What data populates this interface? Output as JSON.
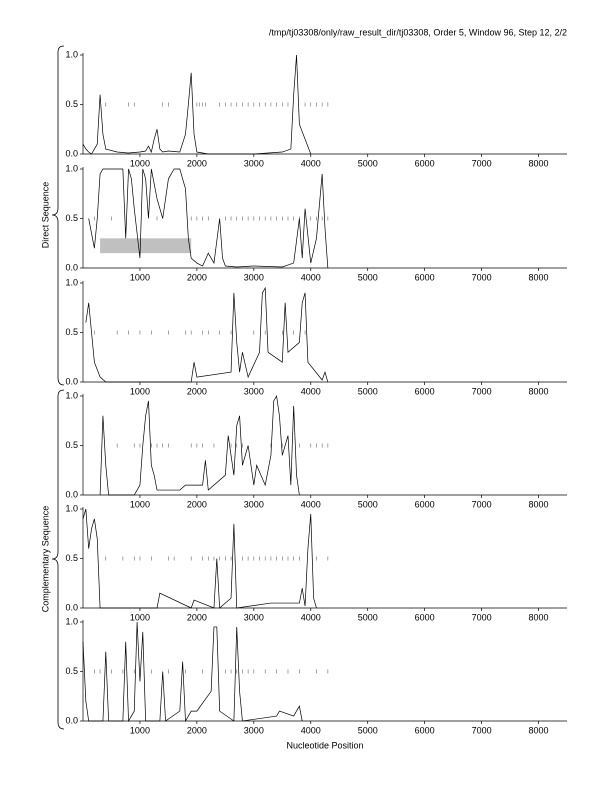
{
  "title": "/tmp/tj03308/only/raw_result_dir/tj03308, Order 5, Window 96, Step 12, 2/2",
  "x_label": "Nucleotide Position",
  "groups": [
    "Direct Sequence",
    "Complementary Sequence"
  ],
  "chart_data": [
    {
      "type": "line",
      "color": "#000000",
      "x": [
        0,
        50,
        100,
        150,
        250,
        300,
        350,
        400,
        600,
        800,
        1000,
        1100,
        1150,
        1200,
        1250,
        1300,
        1350,
        1400,
        1500,
        1700,
        1800,
        1850,
        1900,
        1950,
        2000,
        2200,
        2500,
        3000,
        3500,
        3650,
        3700,
        3750,
        3800,
        4000
      ],
      "values": [
        0.1,
        0.05,
        0.02,
        0,
        0.1,
        0.6,
        0.2,
        0.05,
        0.02,
        0.01,
        0.02,
        0.03,
        0.08,
        0.02,
        0.15,
        0.25,
        0.05,
        0.02,
        0.03,
        0.02,
        0.2,
        0.5,
        0.82,
        0.2,
        0.02,
        0,
        0,
        0,
        0.02,
        0.05,
        0.6,
        1.0,
        0.3,
        0
      ],
      "markers": [
        400,
        800,
        900,
        1400,
        1500,
        2000,
        2050,
        2100,
        2150,
        2400,
        2500,
        2600,
        2700,
        2800,
        2900,
        3000,
        3100,
        3200,
        3300,
        3400,
        3500,
        3600,
        3900,
        4000,
        4100,
        4200,
        4300
      ],
      "xlim": [
        0,
        8500
      ],
      "ylim": [
        0,
        1
      ],
      "xticks": [
        1000,
        2000,
        3000,
        4000,
        5000,
        6000,
        7000,
        8000
      ],
      "yticks": [
        {
          "value": 0,
          "label": "0.0"
        },
        {
          "value": 0.5,
          "label": "0.5"
        },
        {
          "value": 1,
          "label": "1.0"
        }
      ]
    },
    {
      "type": "line",
      "color": "#000000",
      "x": [
        100,
        200,
        250,
        300,
        350,
        500,
        700,
        750,
        800,
        850,
        900,
        1000,
        1050,
        1100,
        1150,
        1200,
        1300,
        1400,
        1500,
        1600,
        1700,
        1800,
        1850,
        1900,
        2000,
        2100,
        2200,
        2300,
        2400,
        2450,
        2500,
        2700,
        3000,
        3500,
        3700,
        3800,
        3850,
        3900,
        4000,
        4100,
        4200,
        4250,
        4300
      ],
      "values": [
        0.5,
        0.2,
        0.5,
        0.95,
        1.0,
        1.0,
        1.0,
        0.3,
        1.0,
        0.9,
        0.6,
        0.1,
        1.0,
        0.9,
        0.5,
        1.0,
        0.7,
        0.5,
        0.9,
        1.0,
        1.0,
        0.8,
        0.3,
        0.1,
        0.05,
        0.02,
        0.15,
        0.05,
        0.5,
        0.1,
        0.02,
        0.01,
        0.02,
        0.01,
        0.05,
        0.5,
        0.1,
        0.6,
        0.05,
        0.3,
        0.95,
        0.4,
        0
      ],
      "markers": [
        200,
        500,
        1300,
        1900,
        2000,
        2100,
        2200,
        2500,
        2600,
        2700,
        2800,
        2900,
        3000,
        3100,
        3200,
        3300,
        3400,
        3500,
        3600,
        3700,
        3800,
        4000,
        4100,
        4200,
        4300
      ],
      "highlight": {
        "x": [
          300,
          1900
        ],
        "y": [
          0.15,
          0.3
        ],
        "color": "#c0c0c0"
      },
      "xlim": [
        0,
        8500
      ],
      "ylim": [
        0,
        1
      ],
      "xticks": [
        1000,
        2000,
        3000,
        4000,
        5000,
        6000,
        7000,
        8000
      ],
      "yticks": [
        {
          "value": 0,
          "label": "0.0"
        },
        {
          "value": 0.5,
          "label": "0.5"
        },
        {
          "value": 1,
          "label": "1.0"
        }
      ]
    },
    {
      "type": "line",
      "color": "#000000",
      "x": [
        50,
        100,
        150,
        200,
        300,
        400,
        1900,
        1950,
        2000,
        2600,
        2650,
        2700,
        2750,
        2800,
        2900,
        3100,
        3150,
        3200,
        3250,
        3500,
        3550,
        3600,
        3800,
        3850,
        3900,
        3950,
        4200,
        4250,
        4300
      ],
      "values": [
        0.6,
        0.8,
        0.5,
        0.2,
        0.05,
        0,
        0,
        0.2,
        0.05,
        0.1,
        0.9,
        0.4,
        0.1,
        0.3,
        0.05,
        0.3,
        0.9,
        0.95,
        0.3,
        0.2,
        0.8,
        0.3,
        0.4,
        0.8,
        0.9,
        0.2,
        0.02,
        0.1,
        0
      ],
      "markers": [
        200,
        600,
        800,
        1000,
        1200,
        1500,
        1800,
        1900,
        2100,
        2200,
        2400,
        2600,
        3000,
        3200,
        3500,
        3700,
        3900
      ],
      "xlim": [
        0,
        8500
      ],
      "ylim": [
        0,
        1
      ],
      "xticks": [
        1000,
        2000,
        3000,
        4000,
        5000,
        6000,
        7000,
        8000
      ],
      "yticks": [
        {
          "value": 0,
          "label": "0.0"
        },
        {
          "value": 0.5,
          "label": "0.5"
        },
        {
          "value": 1,
          "label": "1.0"
        }
      ]
    },
    {
      "type": "line",
      "color": "#000000",
      "x": [
        300,
        350,
        400,
        450,
        900,
        1000,
        1050,
        1100,
        1150,
        1200,
        1250,
        1300,
        1700,
        1800,
        2100,
        2150,
        2200,
        2500,
        2550,
        2600,
        2650,
        2700,
        2750,
        2800,
        2900,
        3000,
        3050,
        3200,
        3300,
        3350,
        3400,
        3450,
        3500,
        3600,
        3650,
        3700,
        3750,
        3800
      ],
      "values": [
        0,
        0.8,
        0.3,
        0,
        0,
        0.1,
        0.5,
        0.8,
        0.95,
        0.3,
        0.2,
        0.05,
        0.05,
        0.1,
        0.1,
        0.35,
        0.05,
        0.2,
        0.6,
        0.4,
        0.2,
        0.7,
        0.8,
        0.3,
        0.5,
        0.1,
        0.3,
        0.1,
        0.4,
        0.95,
        1.0,
        0.8,
        0.4,
        0.6,
        0.1,
        0.9,
        0.2,
        0
      ],
      "markers": [
        600,
        900,
        1000,
        1200,
        1300,
        1400,
        1500,
        1900,
        2000,
        2100,
        2300,
        2600,
        2700,
        2800,
        3300,
        3500,
        3800,
        4000,
        4100,
        4200,
        4300
      ],
      "xlim": [
        0,
        8500
      ],
      "ylim": [
        0,
        1
      ],
      "xticks": [
        1000,
        2000,
        3000,
        4000,
        5000,
        6000,
        7000,
        8000
      ],
      "yticks": [
        {
          "value": 0,
          "label": "0.0"
        },
        {
          "value": 0.5,
          "label": "0.5"
        },
        {
          "value": 1,
          "label": "1.0"
        }
      ]
    },
    {
      "type": "line",
      "color": "#000000",
      "x": [
        0,
        50,
        100,
        150,
        200,
        250,
        300,
        1300,
        1350,
        1900,
        1950,
        2300,
        2350,
        2400,
        2600,
        2650,
        2700,
        3300,
        3800,
        3850,
        3900,
        3950,
        4000,
        4050,
        4100
      ],
      "values": [
        0.9,
        1.0,
        0.6,
        0.8,
        0.9,
        0.7,
        0,
        0,
        0.15,
        0,
        0.08,
        0,
        0.5,
        0,
        0.1,
        0.85,
        0,
        0.05,
        0.05,
        0.2,
        0.02,
        0.6,
        0.95,
        0.1,
        0
      ],
      "markers": [
        400,
        700,
        900,
        1000,
        1200,
        1500,
        1600,
        1900,
        2100,
        2200,
        2300,
        2400,
        2500,
        2600,
        2800,
        2900,
        3000,
        3100,
        3200,
        3300,
        3400,
        3500,
        3600,
        3700,
        3800,
        4100,
        4300
      ],
      "xlim": [
        0,
        8500
      ],
      "ylim": [
        0,
        1
      ],
      "xticks": [
        1000,
        2000,
        3000,
        4000,
        5000,
        6000,
        7000,
        8000
      ],
      "yticks": [
        {
          "value": 0,
          "label": "0.0"
        },
        {
          "value": 0.5,
          "label": "0.5"
        },
        {
          "value": 1,
          "label": "1.0"
        }
      ]
    },
    {
      "type": "line",
      "color": "#000000",
      "x": [
        0,
        50,
        100,
        350,
        400,
        450,
        700,
        750,
        800,
        900,
        950,
        1000,
        1050,
        1100,
        1350,
        1400,
        1450,
        1700,
        1750,
        1800,
        1900,
        2000,
        2250,
        2300,
        2350,
        2400,
        2650,
        2700,
        2750,
        2800,
        3400,
        3450,
        3700,
        3750,
        3800,
        3850
      ],
      "values": [
        0.8,
        0.2,
        0,
        0,
        0.7,
        0,
        0,
        0.8,
        0,
        0.1,
        1.0,
        0.4,
        0.9,
        0,
        0,
        0.5,
        0,
        0.1,
        0.6,
        0,
        0.1,
        0.1,
        0.3,
        0.95,
        0.95,
        0.1,
        0,
        0.95,
        0.3,
        0,
        0.05,
        0.1,
        0.05,
        0.1,
        0.15,
        0
      ],
      "markers": [
        200,
        300,
        500,
        700,
        900,
        1200,
        1500,
        1800,
        2100,
        2500,
        2600,
        2700,
        2800,
        2900,
        3000,
        3200,
        3400,
        3600,
        3800,
        4100,
        4300
      ],
      "xlim": [
        0,
        8500
      ],
      "ylim": [
        0,
        1
      ],
      "xticks": [
        1000,
        2000,
        3000,
        4000,
        5000,
        6000,
        7000,
        8000
      ],
      "yticks": [
        {
          "value": 0,
          "label": "0.0"
        },
        {
          "value": 0.5,
          "label": "0.5"
        },
        {
          "value": 1,
          "label": "1.0"
        }
      ]
    }
  ]
}
